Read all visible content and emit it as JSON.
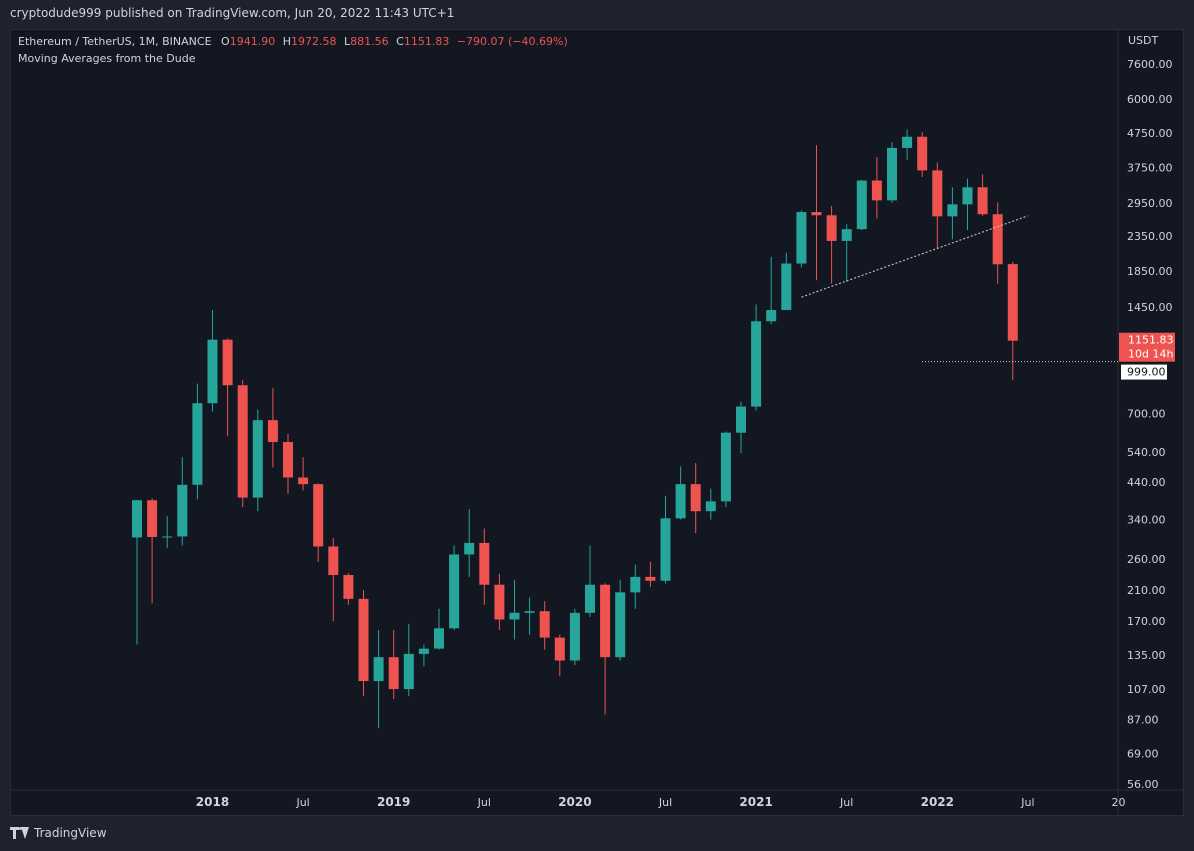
{
  "header": {
    "published_text": "cryptodude999 published on TradingView.com, Jun 20, 2022 11:43 UTC+1"
  },
  "legend": {
    "symbol": "Ethereum / TetherUS, 1M, BINANCE",
    "o_label": "O",
    "o_value": "1941.90",
    "h_label": "H",
    "h_value": "1972.58",
    "l_label": "L",
    "l_value": "881.56",
    "c_label": "C",
    "c_value": "1151.83",
    "change": "−790.07 (−40.69%)",
    "indicator": "Moving Averages from the Dude"
  },
  "footer": {
    "brand": "TradingView"
  },
  "colors": {
    "up": "#26a69a",
    "down": "#ef5350",
    "bg": "#131722",
    "text": "#d1d4dc"
  },
  "chart_data": {
    "type": "candlestick",
    "interval": "1M",
    "scale": "log",
    "currency_label": "USDT",
    "y_ticks": [
      "7600.00",
      "6000.00",
      "4750.00",
      "3750.00",
      "2950.00",
      "2350.00",
      "1850.00",
      "1450.00",
      "700.00",
      "540.00",
      "440.00",
      "340.00",
      "260.00",
      "210.00",
      "170.00",
      "135.00",
      "107.00",
      "87.00",
      "69.00",
      "56.00"
    ],
    "x_tick_labels": [
      "2018",
      "Jul",
      "2019",
      "Jul",
      "2020",
      "Jul",
      "2021",
      "Jul",
      "2022",
      "Jul",
      "20"
    ],
    "last_price_label": "1151.83",
    "countdown_label": "10d 14h",
    "horizontal_level_label": "999.00",
    "horizontal_level": 999,
    "trendline": {
      "start": [
        "2021-04",
        1550
      ],
      "end": [
        "2022-07",
        2700
      ]
    },
    "candles": [
      [
        "2017-08",
        301,
        389,
        145,
        388
      ],
      [
        "2017-09",
        388,
        393,
        192,
        302
      ],
      [
        "2017-10",
        302,
        348,
        280,
        303
      ],
      [
        "2017-11",
        303,
        520,
        285,
        431
      ],
      [
        "2017-12",
        431,
        860,
        390,
        752
      ],
      [
        "2017-12-31",
        752,
        1420,
        710,
        1160
      ],
      [
        "2018-02",
        1160,
        1170,
        600,
        850
      ],
      [
        "2018-03",
        850,
        880,
        370,
        395
      ],
      [
        "2018-04",
        395,
        720,
        360,
        670
      ],
      [
        "2018-05",
        670,
        835,
        485,
        577
      ],
      [
        "2018-06",
        577,
        610,
        405,
        453
      ],
      [
        "2018-07",
        453,
        520,
        415,
        433
      ],
      [
        "2018-08",
        433,
        435,
        255,
        283
      ],
      [
        "2018-09",
        283,
        300,
        170,
        233
      ],
      [
        "2018-10",
        233,
        236,
        190,
        198
      ],
      [
        "2018-11",
        198,
        210,
        102,
        113
      ],
      [
        "2018-12",
        113,
        160,
        82,
        133
      ],
      [
        "2019-01",
        133,
        160,
        100,
        107
      ],
      [
        "2019-02",
        107,
        167,
        102,
        136
      ],
      [
        "2019-03",
        136,
        145,
        125,
        141
      ],
      [
        "2019-04",
        141,
        185,
        140,
        162
      ],
      [
        "2019-05",
        162,
        285,
        160,
        268
      ],
      [
        "2019-06",
        268,
        365,
        230,
        290
      ],
      [
        "2019-07",
        290,
        320,
        190,
        218
      ],
      [
        "2019-08",
        218,
        235,
        160,
        172
      ],
      [
        "2019-09",
        172,
        225,
        150,
        180
      ],
      [
        "2019-10",
        180,
        200,
        155,
        182
      ],
      [
        "2019-11",
        182,
        195,
        140,
        152
      ],
      [
        "2019-12",
        152,
        155,
        117,
        130
      ],
      [
        "2020-01",
        130,
        185,
        126,
        180
      ],
      [
        "2020-02",
        180,
        285,
        175,
        218
      ],
      [
        "2020-03",
        218,
        220,
        90,
        133
      ],
      [
        "2020-04",
        133,
        225,
        130,
        207
      ],
      [
        "2020-05",
        207,
        250,
        185,
        230
      ],
      [
        "2020-06",
        230,
        255,
        215,
        224
      ],
      [
        "2020-07",
        224,
        400,
        220,
        343
      ],
      [
        "2020-08",
        343,
        488,
        340,
        433
      ],
      [
        "2020-09",
        433,
        500,
        310,
        360
      ],
      [
        "2020-10",
        360,
        420,
        340,
        385
      ],
      [
        "2020-11",
        385,
        620,
        370,
        615
      ],
      [
        "2020-12",
        615,
        760,
        535,
        735
      ],
      [
        "2021-01",
        735,
        1475,
        715,
        1315
      ],
      [
        "2021-02",
        1315,
        2040,
        1290,
        1420
      ],
      [
        "2021-03",
        1420,
        2100,
        1420,
        1950
      ],
      [
        "2021-04",
        1950,
        2800,
        1900,
        2770
      ],
      [
        "2021-05",
        2770,
        4370,
        1740,
        2710
      ],
      [
        "2021-06",
        2710,
        2890,
        1700,
        2275
      ],
      [
        "2021-07",
        2275,
        2550,
        1720,
        2465
      ],
      [
        "2021-08",
        2465,
        3450,
        2450,
        3435
      ],
      [
        "2021-09",
        3435,
        4030,
        2650,
        3000
      ],
      [
        "2021-10",
        3000,
        4460,
        2950,
        4290
      ],
      [
        "2021-11",
        4290,
        4870,
        3960,
        4630
      ],
      [
        "2021-12",
        4630,
        4780,
        3520,
        3680
      ],
      [
        "2022-01",
        3680,
        3880,
        2160,
        2690
      ],
      [
        "2022-02",
        2690,
        3280,
        2300,
        2920
      ],
      [
        "2022-03",
        2920,
        3480,
        2450,
        3280
      ],
      [
        "2022-04",
        3280,
        3580,
        2700,
        2730
      ],
      [
        "2022-05",
        2730,
        2960,
        1700,
        1940
      ],
      [
        "2022-06",
        1941.9,
        1972.58,
        881.56,
        1151.83
      ]
    ]
  }
}
